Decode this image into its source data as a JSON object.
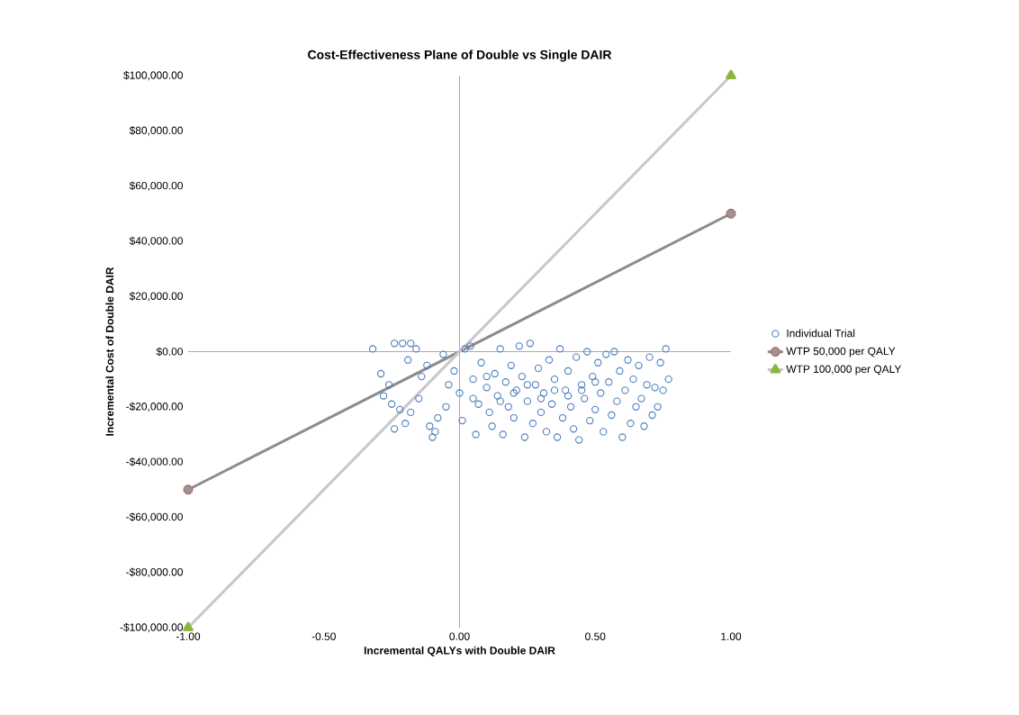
{
  "chart_data": {
    "type": "scatter",
    "title": "Cost-Effectiveness Plane of Double vs Single DAIR",
    "xlabel": "Incremental QALYs with Double DAIR",
    "ylabel": "Incremental Cost of Double DAIR",
    "xlim": [
      -1,
      1
    ],
    "ylim": [
      -100000,
      100000
    ],
    "xticks": [
      {
        "value": -1,
        "label": "-1.00"
      },
      {
        "value": -0.5,
        "label": "-0.50"
      },
      {
        "value": 0,
        "label": "0.00"
      },
      {
        "value": 0.5,
        "label": "0.50"
      },
      {
        "value": 1,
        "label": "1.00"
      }
    ],
    "yticks": [
      {
        "value": -100000,
        "label": "-$100,000.00"
      },
      {
        "value": -80000,
        "label": "-$80,000.00"
      },
      {
        "value": -60000,
        "label": "-$60,000.00"
      },
      {
        "value": -40000,
        "label": "-$40,000.00"
      },
      {
        "value": -20000,
        "label": "-$20,000.00"
      },
      {
        "value": 0,
        "label": "$0.00"
      },
      {
        "value": 20000,
        "label": "$20,000.00"
      },
      {
        "value": 40000,
        "label": "$40,000.00"
      },
      {
        "value": 60000,
        "label": "$60,000.00"
      },
      {
        "value": 80000,
        "label": "$80,000.00"
      },
      {
        "value": 100000,
        "label": "$100,000.00"
      }
    ],
    "legend": "right",
    "series": [
      {
        "name": "Individual Trial",
        "marker": "circle",
        "color": "#4a7ebb",
        "x": [
          -0.32,
          -0.24,
          -0.21,
          -0.18,
          -0.16,
          -0.19,
          -0.29,
          -0.26,
          -0.28,
          -0.25,
          -0.22,
          -0.24,
          -0.2,
          -0.18,
          -0.15,
          -0.14,
          -0.12,
          -0.1,
          -0.09,
          -0.11,
          -0.08,
          -0.06,
          -0.04,
          -0.05,
          -0.02,
          0.0,
          0.01,
          0.02,
          0.04,
          0.05,
          0.06,
          0.07,
          0.08,
          0.1,
          0.11,
          0.12,
          0.13,
          0.14,
          0.15,
          0.16,
          0.17,
          0.18,
          0.19,
          0.2,
          0.21,
          0.22,
          0.23,
          0.24,
          0.25,
          0.26,
          0.27,
          0.28,
          0.29,
          0.3,
          0.31,
          0.32,
          0.33,
          0.34,
          0.35,
          0.36,
          0.37,
          0.38,
          0.39,
          0.4,
          0.41,
          0.42,
          0.43,
          0.44,
          0.45,
          0.46,
          0.47,
          0.48,
          0.49,
          0.5,
          0.51,
          0.52,
          0.53,
          0.54,
          0.55,
          0.56,
          0.57,
          0.58,
          0.59,
          0.6,
          0.61,
          0.62,
          0.63,
          0.64,
          0.65,
          0.66,
          0.67,
          0.68,
          0.69,
          0.7,
          0.71,
          0.72,
          0.73,
          0.74,
          0.75,
          0.76,
          0.77,
          0.2,
          0.25,
          0.3,
          0.35,
          0.15,
          0.1,
          0.45,
          0.5,
          0.05,
          0.4
        ],
        "values": [
          1000,
          3000,
          3000,
          3000,
          1000,
          -3000,
          -8000,
          -12000,
          -16000,
          -19000,
          -21000,
          -28000,
          -26000,
          -22000,
          -17000,
          -9000,
          -5000,
          -31000,
          -29000,
          -27000,
          -24000,
          -1000,
          -12000,
          -20000,
          -7000,
          -15000,
          -25000,
          1000,
          2000,
          -10000,
          -30000,
          -19000,
          -4000,
          -13000,
          -22000,
          -27000,
          -8000,
          -16000,
          1000,
          -30000,
          -11000,
          -20000,
          -5000,
          -24000,
          -14000,
          2000,
          -9000,
          -31000,
          -18000,
          3000,
          -26000,
          -12000,
          -6000,
          -22000,
          -15000,
          -29000,
          -3000,
          -19000,
          -10000,
          -31000,
          1000,
          -24000,
          -14000,
          -7000,
          -20000,
          -28000,
          -2000,
          -32000,
          -12000,
          -17000,
          0,
          -25000,
          -9000,
          -21000,
          -4000,
          -15000,
          -29000,
          -1000,
          -11000,
          -23000,
          0,
          -18000,
          -7000,
          -31000,
          -14000,
          -3000,
          -26000,
          -10000,
          -20000,
          -5000,
          -17000,
          -27000,
          -12000,
          -2000,
          -23000,
          -13000,
          -20000,
          -4000,
          -14000,
          1000,
          -10000,
          -15000,
          -12000,
          -17000,
          -14000,
          -18000,
          -9000,
          -14000,
          -11000,
          -17000,
          -16000
        ]
      },
      {
        "name": "WTP 50,000 per QALY",
        "type": "line",
        "marker": "circle",
        "color": "#8c8c8c",
        "x": [
          -1,
          1
        ],
        "values": [
          -50000,
          50000
        ]
      },
      {
        "name": "WTP 100,000 per QALY",
        "type": "line",
        "marker": "triangle",
        "color": "#c8c8c8",
        "x": [
          -1,
          1
        ],
        "values": [
          -100000,
          100000
        ]
      }
    ]
  }
}
